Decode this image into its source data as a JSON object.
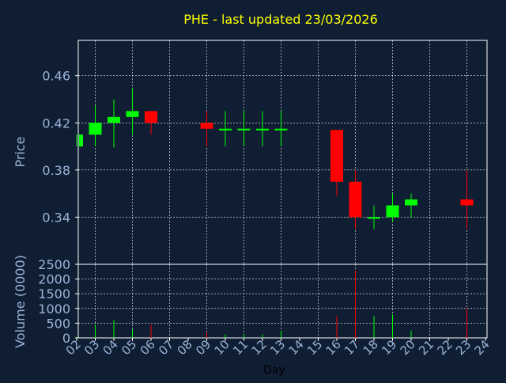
{
  "colors": {
    "background": "#0f1e33",
    "frame": "#ffffff",
    "grid": "#ffffff",
    "title": "#ffff00",
    "axis_text": "#9cb4d8",
    "up": "#00ff00",
    "down": "#ff0000"
  },
  "chart_data": [
    {
      "type": "candlestick",
      "title": "PHE - last updated 23/03/2026",
      "ylabel": "Price",
      "xlabel": "",
      "ylim": [
        0.3,
        0.49
      ],
      "yticks": [
        0.34,
        0.38,
        0.42,
        0.46
      ],
      "ytick_labels": [
        "0.34",
        "0.38",
        "0.42",
        "0.46"
      ],
      "grid": true,
      "candles": [
        {
          "day": 2,
          "open": 0.4,
          "high": 0.41,
          "low": 0.4,
          "close": 0.41
        },
        {
          "day": 3,
          "open": 0.41,
          "high": 0.435,
          "low": 0.4,
          "close": 0.42
        },
        {
          "day": 4,
          "open": 0.42,
          "high": 0.44,
          "low": 0.399,
          "close": 0.425
        },
        {
          "day": 5,
          "open": 0.425,
          "high": 0.45,
          "low": 0.41,
          "close": 0.43
        },
        {
          "day": 6,
          "open": 0.43,
          "high": 0.43,
          "low": 0.41,
          "close": 0.42
        },
        {
          "day": 9,
          "open": 0.42,
          "high": 0.43,
          "low": 0.4,
          "close": 0.415
        },
        {
          "day": 10,
          "open": 0.415,
          "high": 0.43,
          "low": 0.4,
          "close": 0.415
        },
        {
          "day": 11,
          "open": 0.415,
          "high": 0.43,
          "low": 0.401,
          "close": 0.415
        },
        {
          "day": 12,
          "open": 0.415,
          "high": 0.43,
          "low": 0.4,
          "close": 0.415
        },
        {
          "day": 13,
          "open": 0.415,
          "high": 0.43,
          "low": 0.4,
          "close": 0.415
        },
        {
          "day": 16,
          "open": 0.414,
          "high": 0.414,
          "low": 0.358,
          "close": 0.37
        },
        {
          "day": 17,
          "open": 0.37,
          "high": 0.38,
          "low": 0.33,
          "close": 0.34
        },
        {
          "day": 18,
          "open": 0.34,
          "high": 0.35,
          "low": 0.33,
          "close": 0.34
        },
        {
          "day": 19,
          "open": 0.34,
          "high": 0.36,
          "low": 0.336,
          "close": 0.35
        },
        {
          "day": 20,
          "open": 0.35,
          "high": 0.36,
          "low": 0.34,
          "close": 0.355
        },
        {
          "day": 23,
          "open": 0.355,
          "high": 0.38,
          "low": 0.33,
          "close": 0.35
        }
      ]
    },
    {
      "type": "bar",
      "title": "",
      "ylabel": "Volume (0000)",
      "xlabel": "Day",
      "ylim": [
        0,
        2500
      ],
      "yticks": [
        0,
        500,
        1000,
        1500,
        2000,
        2500
      ],
      "ytick_labels": [
        "0",
        "500",
        "1000",
        "1500",
        "2000",
        "2500"
      ],
      "x_categories": [
        "02",
        "03",
        "04",
        "05",
        "06",
        "07",
        "08",
        "09",
        "10",
        "11",
        "12",
        "13",
        "14",
        "15",
        "16",
        "17",
        "18",
        "19",
        "20",
        "21",
        "22",
        "23",
        "24"
      ],
      "x_values": [
        2,
        3,
        4,
        5,
        6,
        7,
        8,
        9,
        10,
        11,
        12,
        13,
        14,
        15,
        16,
        17,
        18,
        19,
        20,
        21,
        22,
        23,
        24
      ],
      "grid": true,
      "bars": [
        {
          "day": 2,
          "volume": 30,
          "direction": "up"
        },
        {
          "day": 3,
          "volume": 450,
          "direction": "up"
        },
        {
          "day": 4,
          "volume": 600,
          "direction": "up"
        },
        {
          "day": 5,
          "volume": 300,
          "direction": "up"
        },
        {
          "day": 6,
          "volume": 450,
          "direction": "down"
        },
        {
          "day": 9,
          "volume": 200,
          "direction": "down"
        },
        {
          "day": 10,
          "volume": 120,
          "direction": "up"
        },
        {
          "day": 11,
          "volume": 120,
          "direction": "up"
        },
        {
          "day": 12,
          "volume": 110,
          "direction": "up"
        },
        {
          "day": 13,
          "volume": 250,
          "direction": "up"
        },
        {
          "day": 16,
          "volume": 750,
          "direction": "down"
        },
        {
          "day": 17,
          "volume": 2300,
          "direction": "down"
        },
        {
          "day": 18,
          "volume": 750,
          "direction": "up"
        },
        {
          "day": 19,
          "volume": 800,
          "direction": "up"
        },
        {
          "day": 20,
          "volume": 250,
          "direction": "up"
        },
        {
          "day": 23,
          "volume": 1000,
          "direction": "down"
        }
      ]
    }
  ]
}
